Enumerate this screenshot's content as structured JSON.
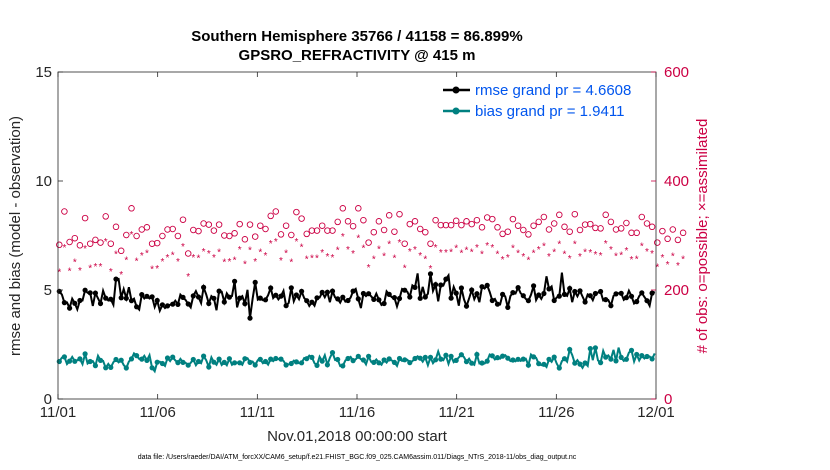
{
  "title_line1": "Southern Hemisphere 35766 / 41158 = 86.899%",
  "title_line2": "GPSRO_REFRACTIVITY @ 415 m",
  "xlabel": "Nov.01,2018 00:00:00 start",
  "footnote": "data file: /Users/raeder/DAI/ATM_forcXX/CAM6_setup/f.e21.FHIST_BGC.f09_025.CAM6assim.011/Diags_NTrS_2018-11/obs_diag_output.nc",
  "colors": {
    "rmse": "#000000",
    "bias": "#008080",
    "obs": "#cc0044",
    "legend_text": "#0055ee"
  },
  "chart_data": {
    "type": "line",
    "title": "Southern Hemisphere 35766 / 41158 = 86.899% — GPSRO_REFRACTIVITY @ 415 m",
    "xlabel": "Nov.01,2018 00:00:00 start",
    "ylabel": "rmse and bias (model - observation)",
    "ylabel_right": "# of obs: o=possible; ×=assimilated",
    "x_ticks": [
      0,
      5,
      10,
      15,
      20,
      25,
      30
    ],
    "x_tick_labels": [
      "11/01",
      "11/06",
      "11/11",
      "11/16",
      "11/21",
      "11/26",
      "12/01"
    ],
    "xlim": [
      0,
      30
    ],
    "ylim": [
      0,
      15
    ],
    "y_ticks": [
      0,
      5,
      10,
      15
    ],
    "ylim_right": [
      0,
      600
    ],
    "y_ticks_right": [
      0,
      200,
      400,
      600
    ],
    "legend": [
      {
        "label": "rmse grand pr = 4.6608",
        "series": "rmse"
      },
      {
        "label": "bias grand pr = 1.9411",
        "series": "bias"
      }
    ],
    "rmse": [
      4.94,
      4.79,
      4.42,
      4.43,
      4.17,
      4.6,
      4.39,
      4.11,
      4.52,
      4.52,
      4.99,
      4.87,
      4.87,
      4.27,
      4.86,
      4.62,
      4.38,
      4.97,
      4.63,
      4.52,
      4.58,
      4.32,
      5.5,
      5.51,
      4.64,
      5.04,
      4.62,
      5.13,
      4.51,
      4.6,
      4.23,
      4.1,
      4.79,
      4.61,
      4.71,
      4.61,
      4.69,
      4.22,
      4.52,
      4.05,
      4.32,
      4.17,
      4.27,
      4.32,
      4.35,
      4.51,
      4.34,
      4.79,
      4.66,
      4.54,
      4.36,
      4.2,
      4.73,
      4.95,
      4.68,
      4.4,
      5.12,
      4.8,
      4.38,
      4.72,
      4.62,
      4.07,
      4.95,
      4.92,
      4.45,
      4.85,
      4.67,
      4.72,
      5.4,
      4.2,
      4.63,
      4.72,
      4.37,
      5.01,
      3.71,
      4.59,
      5.35,
      4.56,
      4.63,
      4.53,
      4.55,
      4.76,
      5.09,
      4.63,
      4.76,
      4.57,
      4.72,
      4.96,
      4.28,
      4.41,
      5.1,
      4.48,
      4.77,
      4.58,
      4.94,
      4.63,
      4.51,
      4.27,
      4.44,
      4.28,
      4.64,
      4.65,
      4.89,
      4.67,
      4.9,
      4.44,
      4.95,
      4.66,
      4.59,
      4.42,
      4.67,
      4.47,
      4.52,
      4.65,
      4.95,
      5.05,
      4.59,
      4.17,
      4.84,
      4.72,
      4.83,
      4.71,
      4.57,
      4.83,
      4.55,
      4.31,
      4.38,
      4.94,
      4.8,
      4.67,
      4.65,
      4.25,
      4.61,
      5.05,
      4.99,
      4.92,
      4.68,
      5.21,
      5.12,
      5.76,
      4.62,
      5.14,
      4.68,
      4.83,
      5.74,
      4.96,
      5.25,
      4.48,
      5.23,
      5.2,
      5.5,
      5.67,
      4.63,
      5.14,
      4.86,
      4.28,
      5.09,
      4.57,
      4.26,
      4.61,
      5.0,
      4.58,
      4.83,
      4.44,
      5.15,
      5.07,
      5.21,
      4.91,
      4.52,
      4.59,
      4.35,
      4.34,
      4.8,
      4.71,
      4.2,
      4.72,
      4.88,
      4.84,
      5.11,
      4.85,
      4.74,
      4.59,
      4.51,
      4.78,
      5.19,
      4.54,
      4.77,
      4.59,
      4.84,
      5.63,
      5.05,
      5.16,
      4.52,
      4.66,
      4.72,
      5.8,
      4.8,
      4.73,
      5.07,
      4.44,
      4.93,
      4.71,
      4.96,
      4.7,
      4.45,
      4.8,
      4.74,
      4.53,
      4.84,
      4.88,
      4.93,
      4.52,
      4.56,
      4.54,
      4.28,
      4.73,
      4.82,
      4.85,
      4.85,
      4.55,
      4.65,
      4.97,
      4.71,
      4.38,
      4.47,
      4.72,
      4.87,
      4.68,
      4.51,
      4.28,
      4.86,
      4.92
    ],
    "bias": [
      1.72,
      1.9,
      1.93,
      1.6,
      1.74,
      1.93,
      1.73,
      1.78,
      1.84,
      1.6,
      2.07,
      1.63,
      1.72,
      1.74,
      1.53,
      1.98,
      1.77,
      1.75,
      1.43,
      1.61,
      1.45,
      1.69,
      1.81,
      1.68,
      1.78,
      1.56,
      1.42,
      1.72,
      1.84,
      2.09,
      1.99,
      1.84,
      1.83,
      1.98,
      1.77,
      2.01,
      1.43,
      1.27,
      1.69,
      1.71,
      1.63,
      1.52,
      1.88,
      1.74,
      1.92,
      1.77,
      1.67,
      1.84,
      1.68,
      1.66,
      1.55,
      1.66,
      1.81,
      1.55,
      1.72,
      1.64,
      1.97,
      1.78,
      1.47,
      1.91,
      1.69,
      1.57,
      1.83,
      1.56,
      1.68,
      1.55,
      1.85,
      1.57,
      1.66,
      1.67,
      1.66,
      1.57,
      1.85,
      1.87,
      1.68,
      1.72,
      1.56,
      1.78,
      1.82,
      1.64,
      1.72,
      1.58,
      1.83,
      1.74,
      1.86,
      1.83,
      1.83,
      1.75,
      1.56,
      1.59,
      1.63,
      1.76,
      1.7,
      1.64,
      1.66,
      1.88,
      1.85,
      1.99,
      1.91,
      1.64,
      1.54,
      1.94,
      1.74,
      2.01,
      1.57,
      1.89,
      2.13,
      1.79,
      1.81,
      1.51,
      1.52,
      1.77,
      1.86,
      1.93,
      1.76,
      1.82,
      1.96,
      1.82,
      1.79,
      1.59,
      1.96,
      1.7,
      1.68,
      1.81,
      1.66,
      1.57,
      1.79,
      1.67,
      1.84,
      1.77,
      1.68,
      1.52,
      1.86,
      1.75,
      1.8,
      1.8,
      1.67,
      1.74,
      1.86,
      1.96,
      1.87,
      1.71,
      1.91,
      1.55,
      1.91,
      1.64,
      1.8,
      2.18,
      1.83,
      1.78,
      2.01,
      1.61,
      1.96,
      1.69,
      1.77,
      1.91,
      2.03,
      1.92,
      1.71,
      1.85,
      1.64,
      1.57,
      2.04,
      1.63,
      1.65,
      1.63,
      1.74,
      2.04,
      1.98,
      1.81,
      1.9,
      1.85,
      1.97,
      2.01,
      1.87,
      1.74,
      1.79,
      1.73,
      1.82,
      1.75,
      1.83,
      1.85,
      1.55,
      2.04,
      1.93,
      1.89,
      1.62,
      1.55,
      1.59,
      1.47,
      1.82,
      1.7,
      1.92,
      1.62,
      1.42,
      1.74,
      1.85,
      1.71,
      2.27,
      2.02,
      1.64,
      1.78,
      1.6,
      1.43,
      1.65,
      1.52,
      2.31,
      1.78,
      2.35,
      1.77,
      1.67,
      2.21,
      1.92,
      2.0,
      1.83,
      2.25,
      1.75,
      2.36,
      1.91,
      1.75,
      1.82,
      2.13,
      2.23,
      1.72,
      2.04,
      1.77,
      1.99,
      1.86,
      1.95,
      1.95,
      1.84,
      2.09
    ],
    "possible": [
      283,
      296,
      344,
      315,
      288,
      310,
      295,
      285,
      282,
      330,
      332,
      297,
      285,
      269,
      292,
      303,
      287,
      270,
      335,
      290,
      285,
      326,
      316,
      275,
      272,
      296,
      301,
      318,
      350,
      323,
      299,
      346,
      311,
      320,
      315,
      272,
      285,
      325,
      286,
      304,
      299,
      335,
      311,
      333,
      312,
      312,
      299,
      318,
      329,
      282,
      267,
      327,
      310,
      342,
      308,
      336,
      322,
      288,
      320,
      301,
      309,
      304,
      320,
      325,
      300,
      333,
      299,
      320,
      304,
      273,
      321,
      313,
      293,
      307,
      320,
      341,
      298,
      315,
      318,
      323,
      312,
      307,
      336,
      342,
      344,
      341,
      302,
      321,
      318,
      330,
      301,
      326,
      343,
      307,
      331,
      320,
      303,
      288,
      309,
      335,
      309,
      304,
      318,
      336,
      309,
      318,
      309,
      338,
      325,
      313,
      350,
      321,
      326,
      288,
      317,
      349,
      350,
      319,
      328,
      317,
      287,
      349,
      306,
      313,
      326,
      317,
      310,
      324,
      337,
      334,
      307,
      329,
      339,
      306,
      285,
      346,
      321,
      315,
      326,
      323,
      312,
      326,
      306,
      302,
      285,
      310,
      328,
      331,
      319,
      301,
      319,
      307,
      319,
      306,
      327,
      340,
      319,
      302,
      326,
      321,
      321,
      302,
      328,
      304,
      315,
      314,
      333,
      307,
      330,
      328,
      315,
      328,
      303,
      301,
      307,
      299,
      330,
      322,
      318,
      327,
      310,
      330,
      302,
      331,
      318,
      310,
      325,
      337,
      334,
      303,
      311,
      323,
      322,
      322,
      338,
      338,
      316,
      304,
      307,
      321,
      339,
      302,
      310,
      328,
      320,
      329,
      321,
      315,
      314,
      324,
      313,
      316,
      338,
      329,
      325,
      327,
      311,
      311,
      313,
      311,
      323,
      308,
      305,
      337,
      305,
      305,
      334,
      330,
      322,
      306,
      316,
      293,
      287,
      314,
      308,
      310,
      294,
      279,
      311,
      306,
      292,
      330,
      305
    ],
    "assimilated": [
      234,
      248,
      279,
      266,
      236,
      262,
      252,
      238,
      237,
      283,
      277,
      250,
      241,
      227,
      244,
      255,
      244,
      225,
      290,
      244,
      235,
      276,
      267,
      228,
      229,
      247,
      256,
      273,
      303,
      273,
      254,
      293,
      264,
      271,
      269,
      228,
      239,
      275,
      240,
      256,
      253,
      285,
      261,
      282,
      265,
      264,
      253,
      270,
      281,
      234,
      226,
      280,
      261,
      290,
      260,
      286,
      272,
      244,
      268,
      253,
      261,
      258,
      271,
      275,
      252,
      284,
      253,
      270,
      256,
      232,
      275,
      266,
      249,
      262,
      274,
      289,
      253,
      266,
      271,
      273,
      264,
      261,
      286,
      292,
      290,
      288,
      255,
      271,
      269,
      281,
      252,
      276,
      290,
      260,
      280,
      270,
      258,
      241,
      260,
      283,
      260,
      257,
      270,
      283,
      262,
      268,
      261,
      286,
      274,
      264,
      299,
      270,
      275,
      243,
      268,
      295,
      296,
      271,
      278,
      270,
      242,
      297,
      258,
      264,
      276,
      269,
      263,
      274,
      285,
      284,
      260,
      280,
      288,
      259,
      241,
      292,
      272,
      266,
      275,
      274,
      264,
      277,
      258,
      256,
      240,
      261,
      279,
      281,
      270,
      255,
      270,
      259,
      271,
      259,
      278,
      288,
      269,
      254,
      274,
      270,
      271,
      255,
      279,
      257,
      267,
      266,
      283,
      260,
      279,
      278,
      267,
      276,
      257,
      255,
      261,
      253,
      278,
      273,
      269,
      276,
      262,
      279,
      256,
      281,
      269,
      262,
      275,
      285,
      282,
      256,
      262,
      273,
      271,
      272,
      285,
      286,
      267,
      257,
      259,
      271,
      285,
      255,
      262,
      277,
      271,
      280,
      270,
      265,
      266,
      274,
      264,
      267,
      286,
      279,
      275,
      277,
      263,
      262,
      265,
      263,
      273,
      260,
      257,
      285,
      258,
      257,
      282,
      279,
      272,
      259,
      268,
      247,
      243,
      265,
      261,
      262,
      248,
      237,
      263,
      258,
      246,
      280,
      258
    ]
  }
}
